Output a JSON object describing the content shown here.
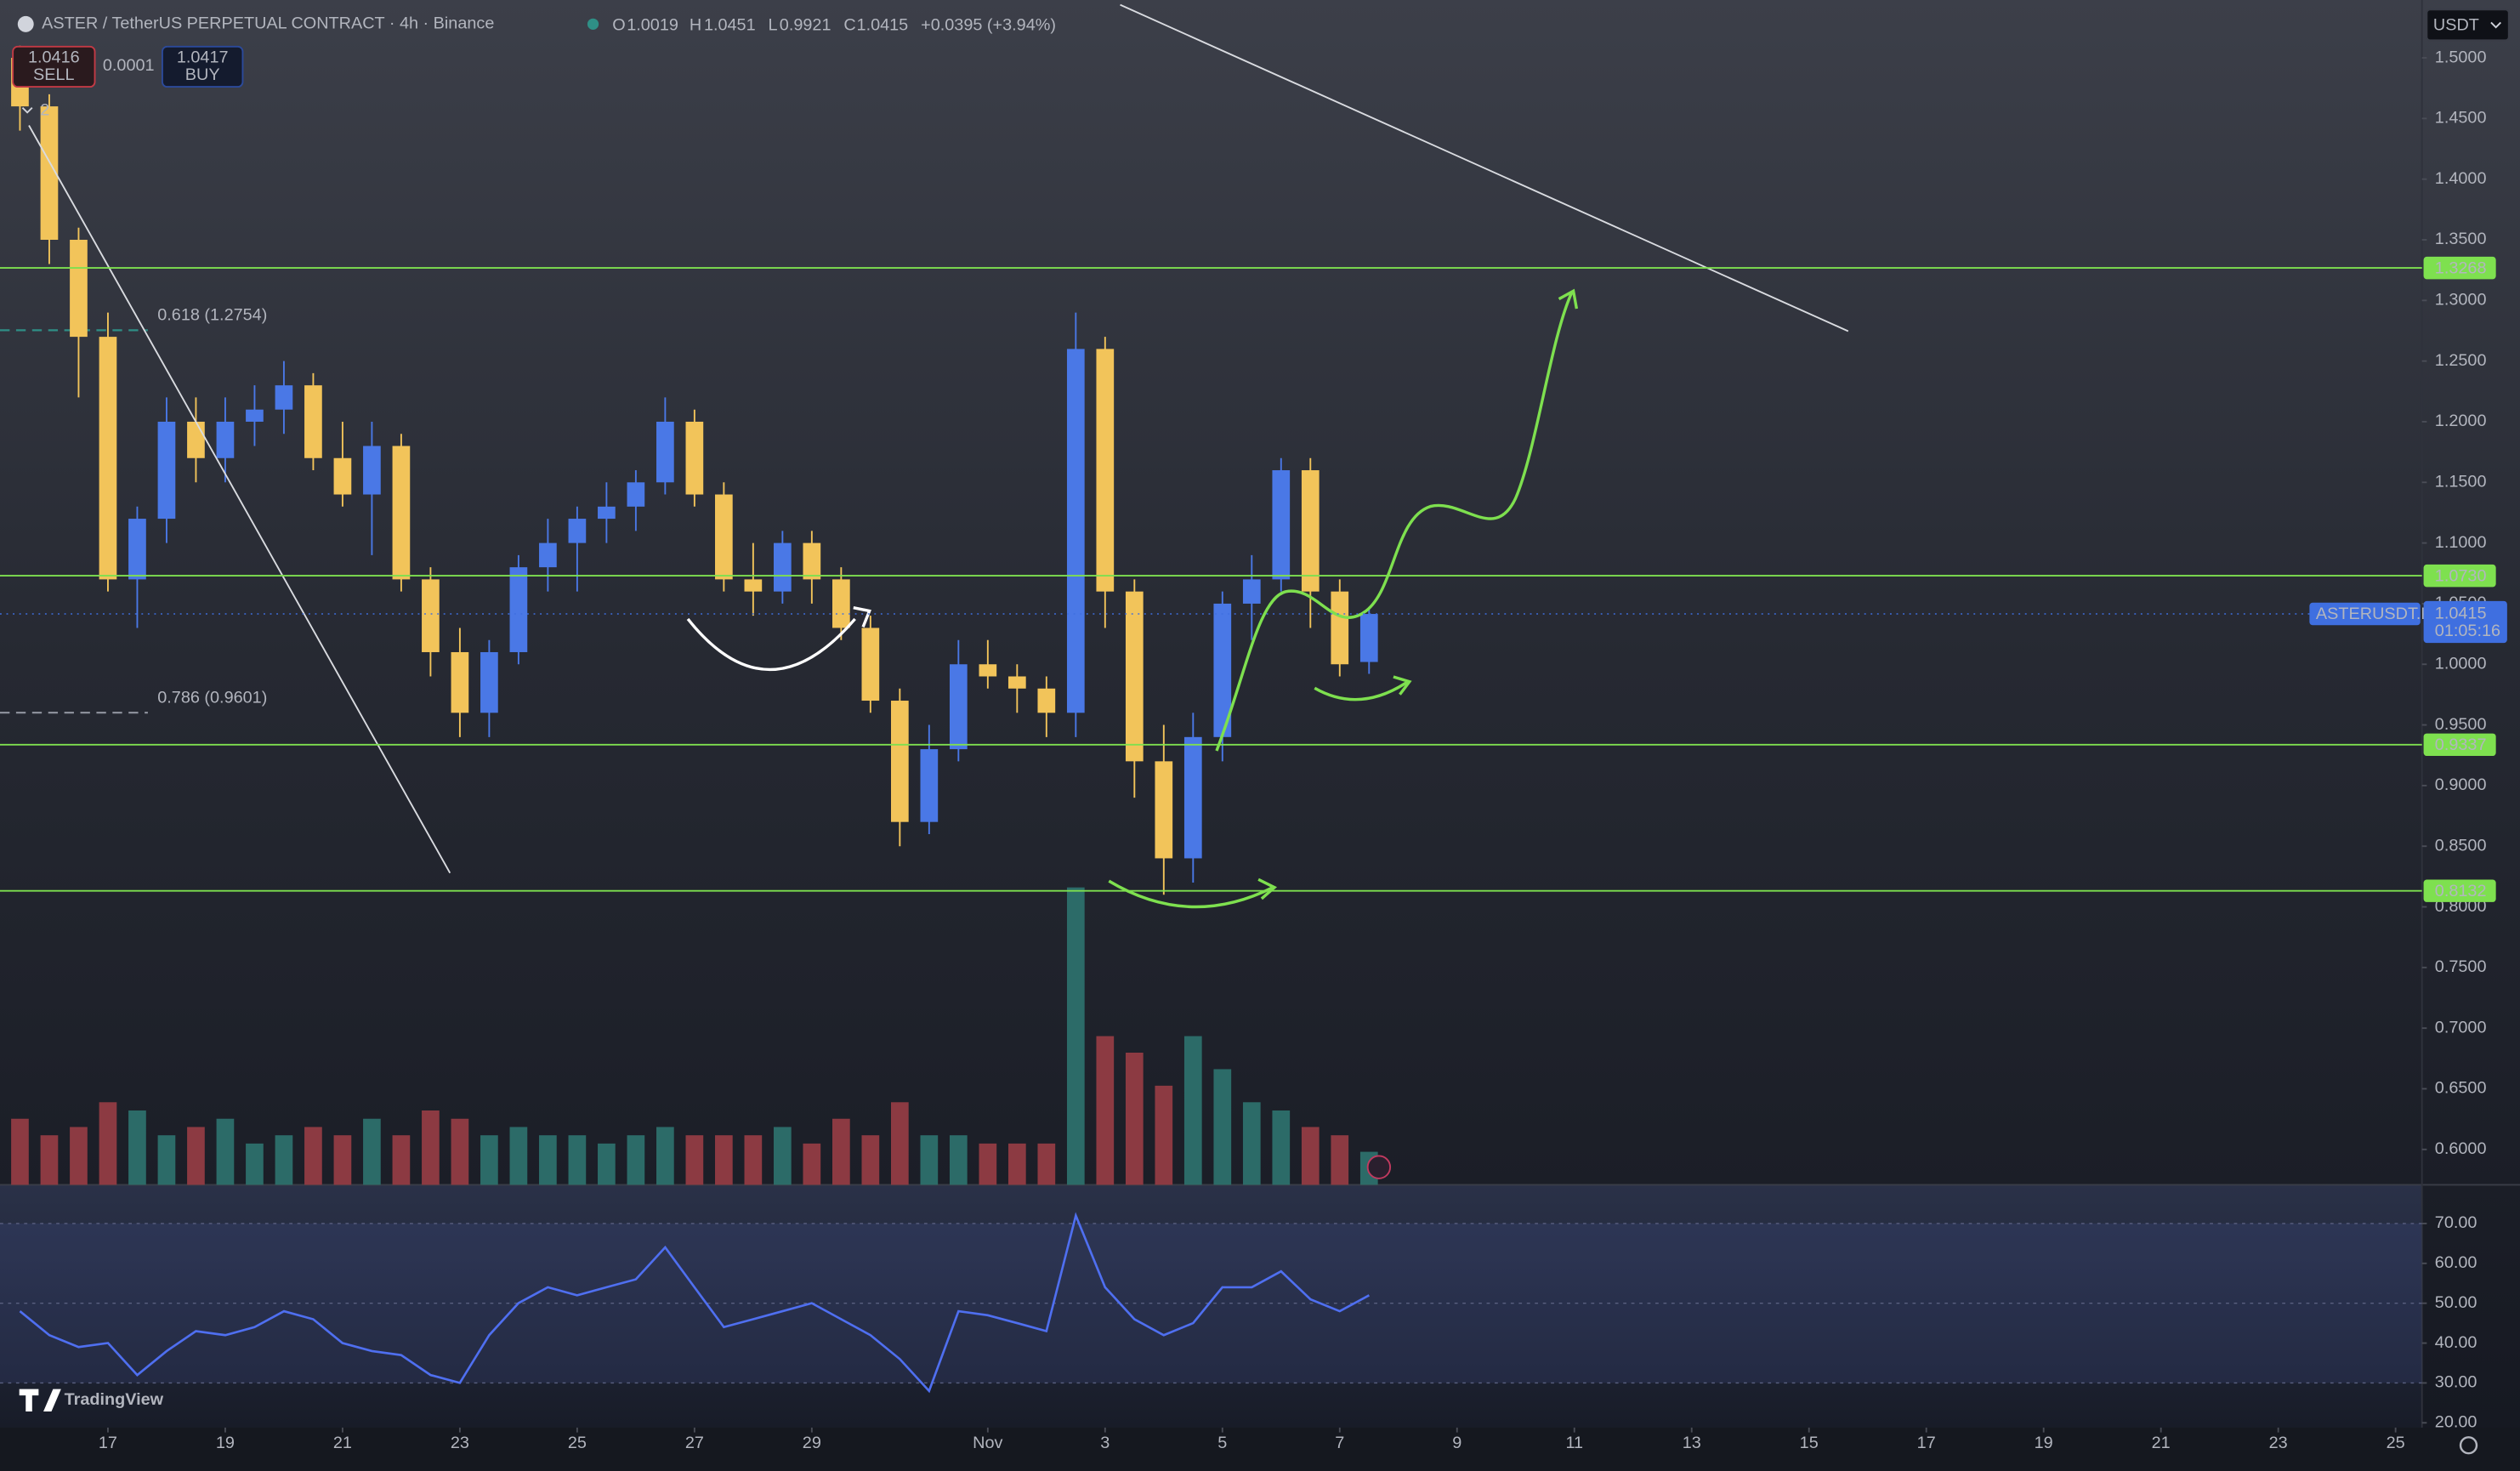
{
  "header": {
    "ohlc_labels": [
      "O",
      "H",
      "L",
      "C"
    ],
    "change": "+0.0395 (+3.94%)",
    "sell": {
      "price": 1.0416,
      "label": "SELL"
    },
    "spread": 0.0001,
    "buy": {
      "price": 1.0417,
      "label": "BUY"
    },
    "indicator_count": "2",
    "currency": "USDT",
    "brand": "TradingView"
  },
  "chart_data": {
    "type": "candlestick",
    "title": "ASTER / TetherUS PERPETUAL CONTRACT · 4h · Binance",
    "x": [
      -1.5,
      -1,
      -0.5,
      0,
      0.5,
      1,
      1.5,
      2,
      2.5,
      3,
      3.5,
      4,
      4.5,
      5,
      5.5,
      6,
      6.5,
      7,
      7.5,
      8,
      8.5,
      9,
      9.5,
      10,
      10.5,
      11,
      11.5,
      12,
      12.5,
      13,
      13.5,
      14,
      14.5,
      15,
      15.5,
      16,
      16.5,
      17,
      17.5,
      18,
      18.5,
      19,
      19.5,
      20,
      20.5,
      21,
      21.5
    ],
    "open": [
      1.5,
      1.46,
      1.35,
      1.27,
      1.07,
      1.12,
      1.2,
      1.17,
      1.2,
      1.21,
      1.23,
      1.17,
      1.14,
      1.18,
      1.07,
      1.01,
      0.96,
      1.01,
      1.08,
      1.1,
      1.12,
      1.13,
      1.15,
      1.2,
      1.14,
      1.07,
      1.06,
      1.1,
      1.07,
      1.03,
      0.97,
      0.87,
      0.93,
      1.0,
      0.99,
      0.98,
      0.96,
      1.26,
      1.06,
      0.92,
      0.84,
      0.94,
      1.05,
      1.07,
      1.16,
      1.06,
      1.0019
    ],
    "high": [
      1.51,
      1.47,
      1.36,
      1.29,
      1.13,
      1.22,
      1.22,
      1.22,
      1.23,
      1.25,
      1.24,
      1.2,
      1.2,
      1.19,
      1.08,
      1.03,
      1.02,
      1.09,
      1.12,
      1.13,
      1.15,
      1.16,
      1.22,
      1.21,
      1.15,
      1.1,
      1.11,
      1.11,
      1.08,
      1.04,
      0.98,
      0.95,
      1.02,
      1.02,
      1.0,
      0.99,
      1.29,
      1.27,
      1.07,
      0.95,
      0.96,
      1.06,
      1.09,
      1.17,
      1.17,
      1.07,
      1.0451
    ],
    "low": [
      1.44,
      1.33,
      1.22,
      1.06,
      1.03,
      1.1,
      1.15,
      1.15,
      1.18,
      1.19,
      1.16,
      1.13,
      1.09,
      1.06,
      0.99,
      0.94,
      0.94,
      1.0,
      1.06,
      1.06,
      1.1,
      1.11,
      1.14,
      1.13,
      1.06,
      1.04,
      1.05,
      1.05,
      1.02,
      0.96,
      0.85,
      0.86,
      0.92,
      0.98,
      0.96,
      0.94,
      0.94,
      1.03,
      0.89,
      0.81,
      0.82,
      0.92,
      1.02,
      1.06,
      1.03,
      0.99,
      0.9921
    ],
    "close": [
      1.46,
      1.35,
      1.27,
      1.07,
      1.12,
      1.2,
      1.17,
      1.2,
      1.21,
      1.23,
      1.17,
      1.14,
      1.18,
      1.07,
      1.01,
      0.96,
      1.01,
      1.08,
      1.1,
      1.12,
      1.13,
      1.15,
      1.2,
      1.14,
      1.07,
      1.06,
      1.1,
      1.07,
      1.03,
      0.97,
      0.87,
      0.93,
      1.0,
      0.99,
      0.98,
      0.96,
      1.26,
      1.06,
      0.92,
      0.84,
      0.94,
      1.05,
      1.07,
      1.16,
      1.06,
      1.0,
      1.0415
    ],
    "up_color": "#4a78e6",
    "down_color": "#f2c45a",
    "xlim": [
      -1.84,
      39.45
    ],
    "xticks": [
      {
        "value": 0,
        "label": "17"
      },
      {
        "value": 2,
        "label": "19"
      },
      {
        "value": 4,
        "label": "21"
      },
      {
        "value": 6,
        "label": "23"
      },
      {
        "value": 8,
        "label": "25"
      },
      {
        "value": 10,
        "label": "27"
      },
      {
        "value": 12,
        "label": "29"
      },
      {
        "value": 15,
        "label": "Nov"
      },
      {
        "value": 17,
        "label": "3"
      },
      {
        "value": 19,
        "label": "5"
      },
      {
        "value": 21,
        "label": "7"
      },
      {
        "value": 23,
        "label": "9"
      },
      {
        "value": 25,
        "label": "11"
      },
      {
        "value": 27,
        "label": "13"
      },
      {
        "value": 29,
        "label": "15"
      },
      {
        "value": 31,
        "label": "17"
      },
      {
        "value": 33,
        "label": "19"
      },
      {
        "value": 35,
        "label": "21"
      },
      {
        "value": 37,
        "label": "23"
      },
      {
        "value": 39,
        "label": "25"
      }
    ],
    "ylim": [
      0.5708,
      1.5477
    ],
    "yticks": [
      {
        "value": 0.6,
        "label": "0.6000"
      },
      {
        "value": 0.65,
        "label": "0.6500"
      },
      {
        "value": 0.7,
        "label": "0.7000"
      },
      {
        "value": 0.75,
        "label": "0.7500"
      },
      {
        "value": 0.8,
        "label": "0.8000"
      },
      {
        "value": 0.85,
        "label": "0.8500"
      },
      {
        "value": 0.9,
        "label": "0.9000"
      },
      {
        "value": 0.95,
        "label": "0.9500"
      },
      {
        "value": 1.0,
        "label": "1.0000"
      },
      {
        "value": 1.05,
        "label": "1.0500"
      },
      {
        "value": 1.1,
        "label": "1.1000"
      },
      {
        "value": 1.15,
        "label": "1.1500"
      },
      {
        "value": 1.2,
        "label": "1.2000"
      },
      {
        "value": 1.25,
        "label": "1.2500"
      },
      {
        "value": 1.3,
        "label": "1.3000"
      },
      {
        "value": 1.35,
        "label": "1.3500"
      },
      {
        "value": 1.4,
        "label": "1.4000"
      },
      {
        "value": 1.45,
        "label": "1.4500"
      },
      {
        "value": 1.5,
        "label": "1.5000"
      }
    ],
    "levels": [
      1.3268,
      {
        "value": 1.073,
        "label": "1.0730"
      },
      0.9337,
      0.8132
    ],
    "level_color": "#7ee04f",
    "fib": [
      {
        "value": 1.2754,
        "label": "0.618 (1.2754)",
        "color": "#2f8f86"
      },
      {
        "value": 0.9601,
        "label": "0.786 (0.9601)",
        "color": "#8a8e99"
      }
    ],
    "last_price": {
      "symbol": "ASTERUSDT.P",
      "countdown": "01:05:16",
      "color": "#3f6fe0"
    },
    "volume": {
      "values": [
        4,
        3,
        3.5,
        5,
        4.5,
        3,
        3.5,
        4,
        2.5,
        3,
        3.5,
        3,
        4,
        3,
        4.5,
        4,
        3,
        3.5,
        3,
        3,
        2.5,
        3,
        3.5,
        3,
        3,
        3,
        3.5,
        2.5,
        4,
        3,
        5,
        3,
        3,
        2.5,
        2.5,
        2.5,
        18,
        9,
        8,
        6,
        9,
        7,
        5,
        4.5,
        3.5,
        3,
        2
      ],
      "up_color": "#2c6b68",
      "down_color": "#8c3a42"
    },
    "rsi": {
      "values": [
        48,
        42,
        39,
        40,
        32,
        38,
        43,
        42,
        44,
        48,
        46,
        40,
        38,
        37,
        32,
        30,
        42,
        50,
        54,
        52,
        54,
        56,
        64,
        54,
        44,
        46,
        48,
        50,
        46,
        42,
        36,
        28,
        48,
        47,
        45,
        43,
        72,
        54,
        46,
        42,
        45,
        54,
        54,
        58,
        51,
        48,
        52
      ],
      "color": "#4f6ff0",
      "ylim": [
        18.8,
        79.7
      ],
      "yticks": [
        {
          "value": 70,
          "label": "70.00"
        },
        {
          "value": 60,
          "label": "60.00"
        },
        {
          "value": 50,
          "label": "50.00"
        },
        {
          "value": 40,
          "label": "40.00"
        },
        {
          "value": 30,
          "label": "30.00"
        },
        {
          "value": 20,
          "label": "20.00"
        }
      ]
    }
  }
}
